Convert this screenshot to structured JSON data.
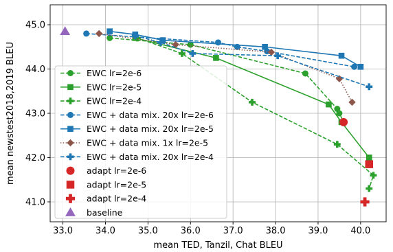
{
  "chart_data": {
    "type": "line",
    "xlabel": "mean TED, Tanzil, Chat BLEU",
    "ylabel": "mean newstest2018,2019 BLEU",
    "xlim": [
      32.7,
      40.6
    ],
    "ylim": [
      40.55,
      45.45
    ],
    "xticks": [
      "33.0",
      "34.0",
      "35.0",
      "36.0",
      "37.0",
      "38.0",
      "39.0",
      "40.0"
    ],
    "yticks": [
      "41.0",
      "42.0",
      "43.0",
      "44.0",
      "45.0"
    ],
    "grid": true,
    "legend_position": "lower-left",
    "colors": {
      "green": "#2ca02c",
      "blue": "#1f77b4",
      "brown": "#8c564b",
      "red": "#d62728",
      "purple": "#9467bd"
    },
    "series": [
      {
        "name": "EWC lr=2e-6",
        "color": "#2ca02c",
        "linestyle": "dashed",
        "marker": "circle",
        "points": [
          [
            34.1,
            44.7
          ],
          [
            36.0,
            44.55
          ],
          [
            38.7,
            43.9
          ],
          [
            39.45,
            43.1
          ],
          [
            39.5,
            43.0
          ],
          [
            39.6,
            42.8
          ]
        ]
      },
      {
        "name": "EWC lr=2e-5",
        "color": "#2ca02c",
        "linestyle": "solid",
        "marker": "square",
        "points": [
          [
            34.7,
            44.7
          ],
          [
            36.6,
            44.25
          ],
          [
            39.25,
            43.2
          ],
          [
            39.55,
            42.8
          ],
          [
            40.2,
            42.0
          ]
        ]
      },
      {
        "name": "EWC lr=2e-4",
        "color": "#2ca02c",
        "linestyle": "dashed",
        "marker": "plus",
        "points": [
          [
            34.75,
            44.7
          ],
          [
            35.8,
            44.35
          ],
          [
            37.45,
            43.25
          ],
          [
            39.45,
            42.3
          ],
          [
            40.3,
            41.6
          ],
          [
            40.2,
            41.3
          ]
        ]
      },
      {
        "name": "EWC + data mix. 20x lr=2e-6",
        "color": "#1f77b4",
        "linestyle": "dashed",
        "marker": "circle",
        "points": [
          [
            33.55,
            44.8
          ],
          [
            36.65,
            44.6
          ],
          [
            37.1,
            44.5
          ],
          [
            37.8,
            44.4
          ],
          [
            39.85,
            44.05
          ]
        ]
      },
      {
        "name": "EWC + data mix. 20x lr=2e-5",
        "color": "#1f77b4",
        "linestyle": "solid",
        "marker": "square",
        "points": [
          [
            34.1,
            44.85
          ],
          [
            34.7,
            44.78
          ],
          [
            35.35,
            44.65
          ],
          [
            37.75,
            44.5
          ],
          [
            39.55,
            44.3
          ],
          [
            40.0,
            44.05
          ]
        ]
      },
      {
        "name": "EWC + data mix. 1x lr=2e-5",
        "color": "#8c564b",
        "linestyle": "dotted",
        "marker": "diamond",
        "points": [
          [
            33.85,
            44.8
          ],
          [
            35.65,
            44.55
          ],
          [
            37.9,
            44.38
          ],
          [
            39.5,
            43.78
          ],
          [
            39.8,
            43.25
          ]
        ]
      },
      {
        "name": "EWC + data mix. 20x lr=2e-4",
        "color": "#1f77b4",
        "linestyle": "dashed",
        "marker": "plus",
        "points": [
          [
            34.7,
            44.75
          ],
          [
            35.3,
            44.6
          ],
          [
            36.05,
            44.35
          ],
          [
            38.05,
            44.3
          ],
          [
            40.2,
            43.6
          ]
        ]
      },
      {
        "name": "adapt lr=2e-6",
        "color": "#d62728",
        "linestyle": "none",
        "marker": "circle",
        "points": [
          [
            39.6,
            42.8
          ]
        ]
      },
      {
        "name": "adapt lr=2e-5",
        "color": "#d62728",
        "linestyle": "none",
        "marker": "square",
        "points": [
          [
            40.2,
            41.85
          ]
        ]
      },
      {
        "name": "adapt lr=2e-4",
        "color": "#d62728",
        "linestyle": "none",
        "marker": "plus",
        "points": [
          [
            40.1,
            41.0
          ]
        ]
      },
      {
        "name": "baseline",
        "color": "#9467bd",
        "linestyle": "none",
        "marker": "triangle",
        "points": [
          [
            33.05,
            44.85
          ]
        ]
      }
    ]
  }
}
